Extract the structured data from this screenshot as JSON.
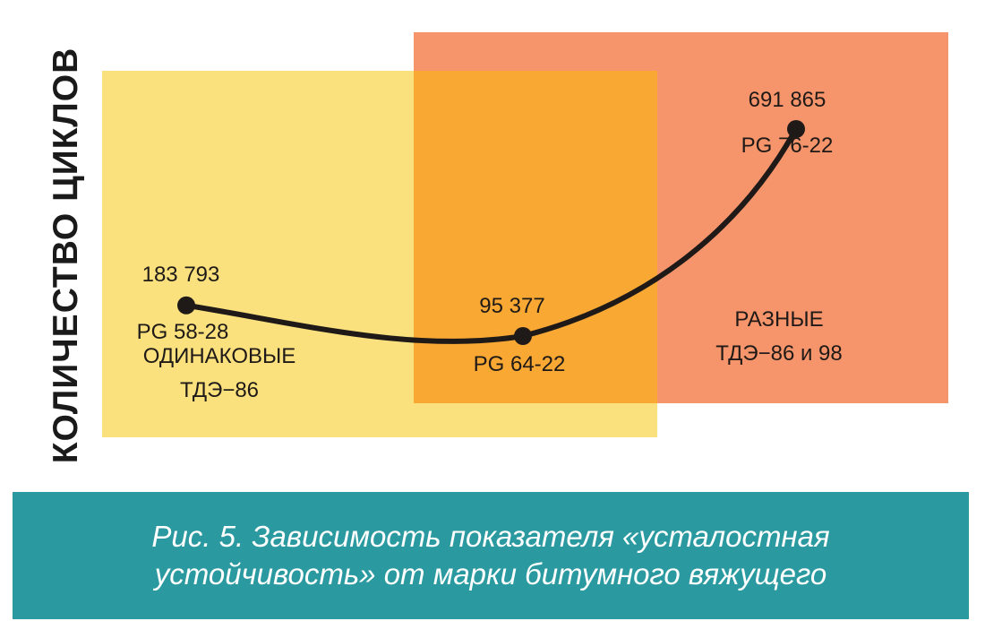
{
  "chart_data": {
    "type": "line",
    "ylabel": "КОЛИЧЕСТВО ЦИКЛОВ",
    "categories": [
      "PG 58-28",
      "PG 64-22",
      "PG 76-22"
    ],
    "values": [
      183793,
      95377,
      691865
    ],
    "value_labels": [
      "183 793",
      "95 377",
      "691 865"
    ],
    "regions": [
      {
        "line1": "ОДИНАКОВЫЕ",
        "line2": "ТДЭ−86",
        "color": "#fae17e"
      },
      {
        "line1": "РАЗНЫЕ",
        "line2": "ТДЭ−86 и 98",
        "color": "#f6956b"
      }
    ],
    "overlap_color": "#f8a833",
    "line_color": "#1f1a17",
    "grid": false
  },
  "caption": {
    "line1": "Рис. 5. Зависимость показателя «усталостная",
    "line2": "устойчивость» от марки битумного вяжущего"
  }
}
